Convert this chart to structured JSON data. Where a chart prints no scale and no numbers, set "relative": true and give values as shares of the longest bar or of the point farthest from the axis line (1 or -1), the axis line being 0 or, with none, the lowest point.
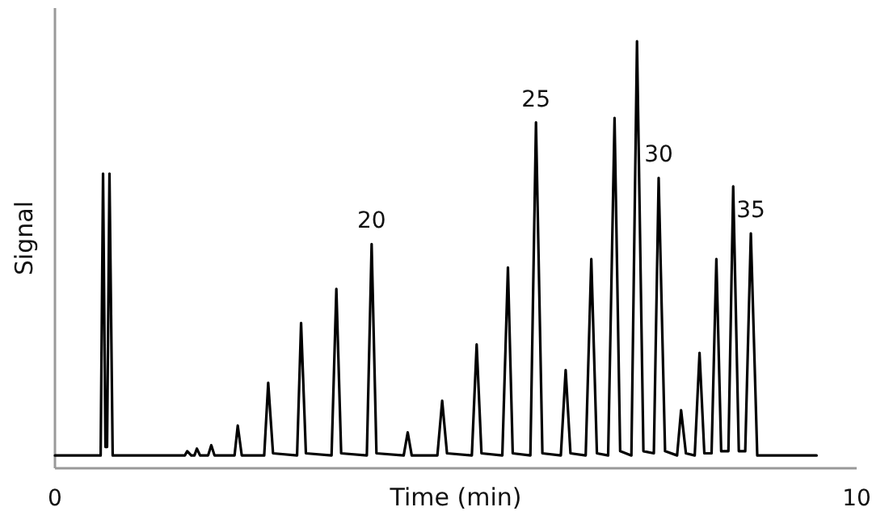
{
  "chart_data": {
    "type": "line",
    "relative": true,
    "xlabel": "Time (min)",
    "ylabel": "Signal",
    "xlim": [
      0,
      10
    ],
    "xticks": [
      0,
      10
    ],
    "x": [
      0,
      0.57,
      0.6,
      0.63,
      0.65,
      0.68,
      0.72,
      1.62,
      1.65,
      1.7,
      1.74,
      1.77,
      1.81,
      1.91,
      1.95,
      1.99,
      2.24,
      2.28,
      2.33,
      2.61,
      2.66,
      2.72,
      3.02,
      3.07,
      3.13,
      3.45,
      3.51,
      3.57,
      3.89,
      3.95,
      4.01,
      4.35,
      4.4,
      4.45,
      4.77,
      4.83,
      4.89,
      5.2,
      5.26,
      5.32,
      5.58,
      5.65,
      5.71,
      5.93,
      6.0,
      6.08,
      6.31,
      6.37,
      6.43,
      6.62,
      6.69,
      6.76,
      6.9,
      6.98,
      7.05,
      7.19,
      7.26,
      7.34,
      7.47,
      7.53,
      7.61,
      7.76,
      7.81,
      7.87,
      7.98,
      8.04,
      8.1,
      8.19,
      8.25,
      8.31,
      8.4,
      8.46,
      8.53,
      8.61,
      8.68,
      8.76,
      9.5
    ],
    "series": [
      {
        "color": "#000000",
        "values": [
          0.03,
          0.03,
          0.69,
          0.05,
          0.05,
          0.69,
          0.03,
          0.03,
          0.04,
          0.03,
          0.03,
          0.046,
          0.03,
          0.03,
          0.054,
          0.03,
          0.03,
          0.1,
          0.03,
          0.03,
          0.2,
          0.035,
          0.03,
          0.34,
          0.035,
          0.03,
          0.42,
          0.035,
          0.03,
          0.525,
          0.035,
          0.03,
          0.084,
          0.03,
          0.03,
          0.158,
          0.035,
          0.03,
          0.29,
          0.035,
          0.03,
          0.47,
          0.035,
          0.03,
          0.81,
          0.035,
          0.03,
          0.23,
          0.035,
          0.03,
          0.49,
          0.035,
          0.03,
          0.82,
          0.04,
          0.03,
          1,
          0.04,
          0.035,
          0.68,
          0.04,
          0.03,
          0.136,
          0.035,
          0.03,
          0.27,
          0.035,
          0.035,
          0.49,
          0.04,
          0.04,
          0.66,
          0.04,
          0.04,
          0.55,
          0.03,
          0.03
        ]
      }
    ],
    "annotations": [
      {
        "text": "20",
        "x": 3.95,
        "y": 0.525
      },
      {
        "text": "25",
        "x": 6.0,
        "y": 0.81
      },
      {
        "text": "30",
        "x": 7.53,
        "y": 0.68
      },
      {
        "text": "35",
        "x": 8.68,
        "y": 0.55
      }
    ]
  }
}
